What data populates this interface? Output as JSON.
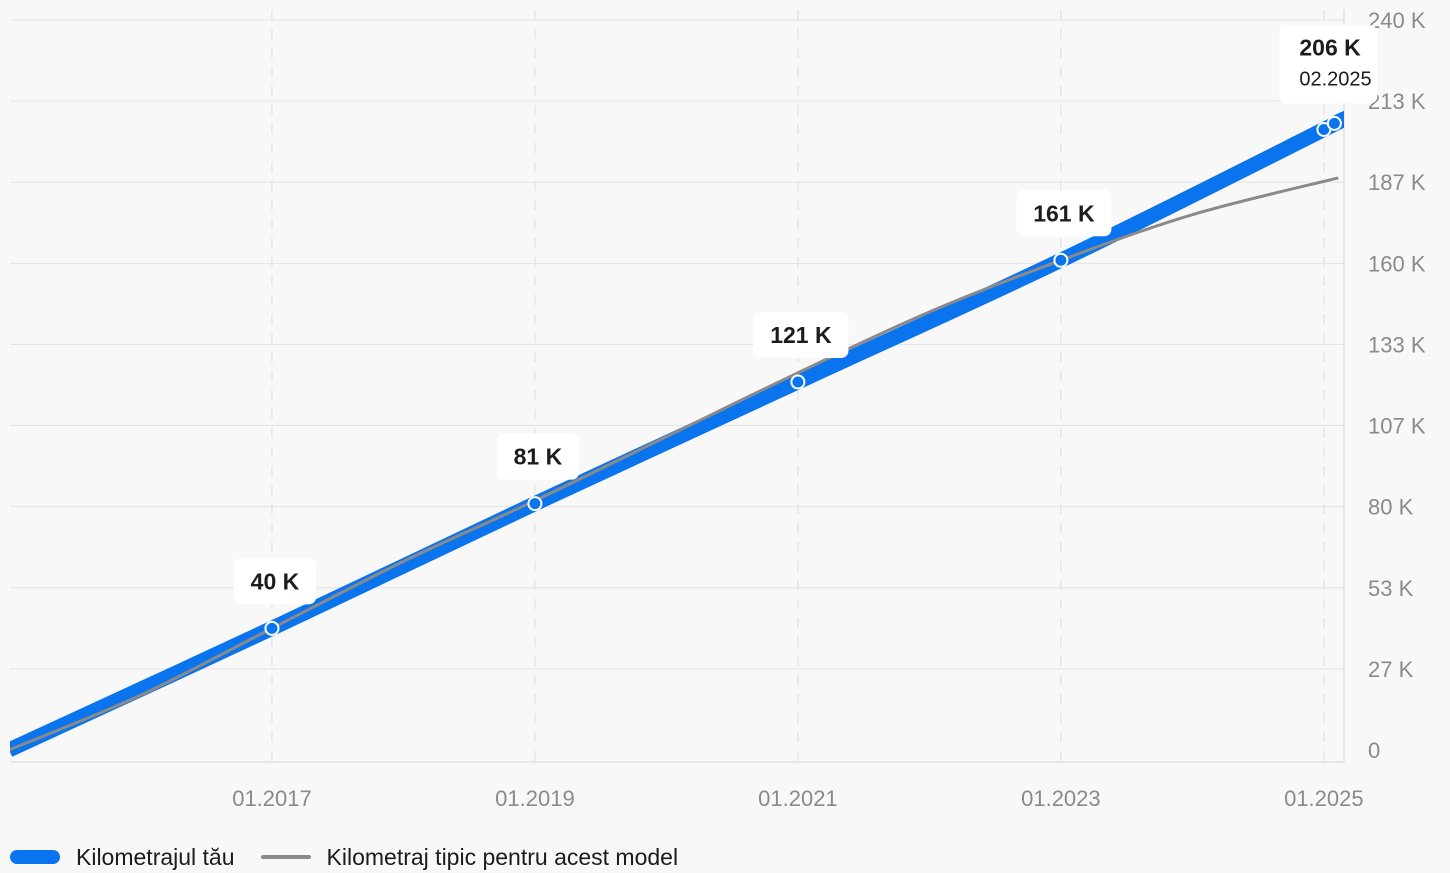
{
  "chart_data": {
    "type": "line",
    "x_unit": "year",
    "xlim": [
      2015.0,
      2025.1
    ],
    "ylim": [
      0,
      240000
    ],
    "y_ticks": [
      {
        "value": 0,
        "label": "0"
      },
      {
        "value": 26667,
        "label": "27 K"
      },
      {
        "value": 53333,
        "label": "53 K"
      },
      {
        "value": 80000,
        "label": "80 K"
      },
      {
        "value": 106667,
        "label": "107 K"
      },
      {
        "value": 133333,
        "label": "133 K"
      },
      {
        "value": 160000,
        "label": "160 K"
      },
      {
        "value": 186667,
        "label": "187 K"
      },
      {
        "value": 213333,
        "label": "213 K"
      },
      {
        "value": 240000,
        "label": "240 K"
      }
    ],
    "x_ticks": [
      {
        "value": 2017.0,
        "label": "01.2017"
      },
      {
        "value": 2019.0,
        "label": "01.2019"
      },
      {
        "value": 2021.0,
        "label": "01.2021"
      },
      {
        "value": 2023.0,
        "label": "01.2023"
      },
      {
        "value": 2025.0,
        "label": "01.2025"
      }
    ],
    "grid": true,
    "legend_position": "bottom-left",
    "series": [
      {
        "name": "Kilometrajul tău",
        "color": "#0a74ee",
        "x": [
          2015.0,
          2017.0,
          2019.0,
          2021.0,
          2023.0,
          2025.0,
          2025.08
        ],
        "y": [
          0,
          40000,
          81000,
          121000,
          161000,
          204000,
          206000
        ],
        "markers": [
          2017.0,
          2019.0,
          2021.0,
          2023.0,
          2025.0,
          2025.08
        ]
      },
      {
        "name": "Kilometraj tipic pentru acest model",
        "color": "#8a8a8a",
        "x": [
          2015.0,
          2016.0,
          2017.0,
          2018.0,
          2019.0,
          2020.0,
          2021.0,
          2022.0,
          2023.0,
          2024.0,
          2025.1
        ],
        "y": [
          0,
          18000,
          40000,
          62000,
          82000,
          103000,
          124000,
          144000,
          161000,
          176000,
          188000
        ]
      }
    ],
    "annotations": [
      {
        "x": 2017.0,
        "y": 40000,
        "label": "40 K"
      },
      {
        "x": 2019.0,
        "y": 81000,
        "label": "81 K"
      },
      {
        "x": 2021.0,
        "y": 121000,
        "label": "121 K"
      },
      {
        "x": 2023.0,
        "y": 161000,
        "label": "161 K"
      },
      {
        "x": 2025.08,
        "y": 206000,
        "label": "206 K",
        "sublabel": "02.2025"
      }
    ]
  }
}
